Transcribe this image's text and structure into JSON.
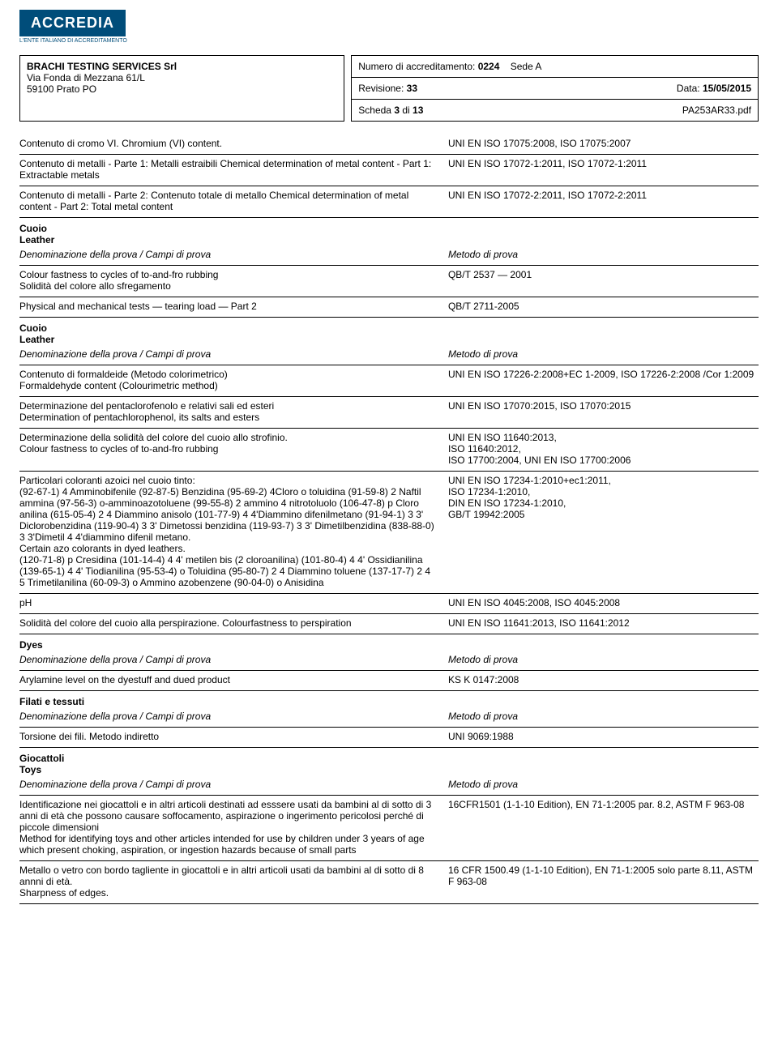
{
  "logo": {
    "main": "ACCREDIA",
    "sub": "L'ENTE ITALIANO DI ACCREDITAMENTO"
  },
  "header": {
    "company": "BRACHI TESTING SERVICES Srl",
    "addr1": "Via Fonda di Mezzana 61/L",
    "addr2": "59100 Prato PO",
    "accred_label": "Numero di accreditamento:",
    "accred_num": "0224",
    "sede": "Sede A",
    "rev_label": "Revisione:",
    "rev": "33",
    "data_label": "Data:",
    "data": "15/05/2015",
    "scheda_label": "Scheda",
    "scheda_num": "3",
    "scheda_of": "di",
    "scheda_total": "13",
    "file": "PA253AR33.pdf"
  },
  "layout": {
    "left_col_width_pct": 58,
    "border_color": "#000000",
    "logo_bg": "#004d7a",
    "font_size_pt": 12
  },
  "labels": {
    "denom": "Denominazione della prova / Campi di prova",
    "metodo": "Metodo di prova"
  },
  "top_rows": [
    {
      "l": "Contenuto di cromo VI. Chromium (VI) content.",
      "r": "UNI EN ISO 17075:2008, ISO 17075:2007"
    },
    {
      "l": "Contenuto di metalli - Parte 1: Metalli estraibili Chemical determination of metal content - Part 1: Extractable metals",
      "r": "UNI EN ISO 17072-1:2011, ISO 17072-1:2011"
    },
    {
      "l": "Contenuto di metalli - Parte 2: Contenuto totale di metallo Chemical determination of metal content - Part 2: Total metal content",
      "r": "UNI EN ISO 17072-2:2011, ISO 17072-2:2011"
    }
  ],
  "sections": [
    {
      "title_lines": [
        "Cuoio",
        "Leather"
      ],
      "rows": [
        {
          "l": "Colour fastness to cycles of to-and-fro rubbing\nSolidità del colore allo sfregamento",
          "r": "QB/T 2537 — 2001"
        },
        {
          "l": "Physical and mechanical tests — tearing load — Part 2",
          "r": "QB/T 2711-2005"
        }
      ]
    },
    {
      "title_lines": [
        "Cuoio",
        "Leather"
      ],
      "rows": [
        {
          "l": "Contenuto di formaldeide (Metodo colorimetrico)\nFormaldehyde content (Colourimetric method)",
          "r": "UNI EN ISO 17226-2:2008+EC 1-2009, ISO 17226-2:2008 /Cor 1:2009"
        },
        {
          "l": "Determinazione del pentaclorofenolo e relativi sali ed esteri\nDetermination of pentachlorophenol, its salts and esters",
          "r": "UNI EN ISO 17070:2015, ISO 17070:2015"
        },
        {
          "l": "Determinazione della solidità del colore del cuoio allo strofinio.\nColour fastness to cycles of to-and-fro rubbing",
          "r": "UNI EN ISO 11640:2013,\nISO 11640:2012,\nISO 17700:2004, UNI EN ISO 17700:2006"
        },
        {
          "l": "Particolari coloranti azoici nel cuoio tinto:\n(92-67-1) 4 Amminobifenile (92-87-5) Benzidina (95-69-2) 4Cloro o toluidina (91-59-8) 2 Naftil ammina (97-56-3) o-amminoazotoluene (99-55-8) 2 ammino 4 nitrotoluolo (106-47-8) p Cloro anilina (615-05-4) 2 4 Diammino anisolo (101-77-9) 4 4'Diammino difenilmetano (91-94-1) 3 3' Diclorobenzidina (119-90-4) 3 3' Dimetossi benzidina (119-93-7) 3 3' Dimetilbenzidina (838-88-0) 3 3'Dimetil 4 4'diammino difenil metano.\nCertain azo colorants in dyed leathers.\n(120-71-8) p Cresidina (101-14-4) 4 4' metilen bis (2 cloroanilina) (101-80-4) 4 4' Ossidianilina (139-65-1) 4 4' Tiodianilina (95-53-4) o Toluidina (95-80-7) 2 4 Diammino toluene (137-17-7) 2 4 5 Trimetilanilina (60-09-3) o  Ammino azobenzene (90-04-0) o Anisidina",
          "r": "UNI EN ISO 17234-1:2010+ec1:2011,\nISO 17234-1:2010,\nDIN EN ISO 17234-1:2010,\nGB/T 19942:2005"
        },
        {
          "l": "pH",
          "r": "UNI EN ISO 4045:2008, ISO 4045:2008"
        },
        {
          "l": "Solidità del colore del cuoio alla perspirazione. Colourfastness to perspiration",
          "r": "UNI EN ISO 11641:2013, ISO 11641:2012"
        }
      ]
    },
    {
      "title_lines": [
        "Dyes"
      ],
      "rows": [
        {
          "l": "Arylamine level on the dyestuff and dued product",
          "r": "KS K 0147:2008"
        }
      ]
    },
    {
      "title_lines": [
        "Filati e tessuti"
      ],
      "rows": [
        {
          "l": "Torsione dei fili. Metodo indiretto",
          "r": "UNI 9069:1988"
        }
      ]
    },
    {
      "title_lines": [
        "Giocattoli",
        "Toys"
      ],
      "rows": [
        {
          "l": "Identificazione nei giocattoli e in altri articoli destinati ad esssere usati da bambini al di sotto di 3 anni di età che possono causare soffocamento, aspirazione o ingerimento pericolosi perché di piccole dimensioni\nMethod for identifying toys and other articles intended for use by children under 3 years of age which present choking, aspiration, or ingestion hazards because of small parts",
          "r": "16CFR1501 (1-1-10 Edition), EN 71-1:2005 par. 8.2, ASTM F 963-08"
        },
        {
          "l": "Metallo o vetro con bordo tagliente in giocattoli e in altri articoli usati da bambini al di sotto di 8 annni di età.\nSharpness of edges.",
          "r": "16 CFR 1500.49 (1-1-10 Edition), EN 71-1:2005 solo parte 8.11, ASTM F 963-08"
        }
      ]
    }
  ]
}
